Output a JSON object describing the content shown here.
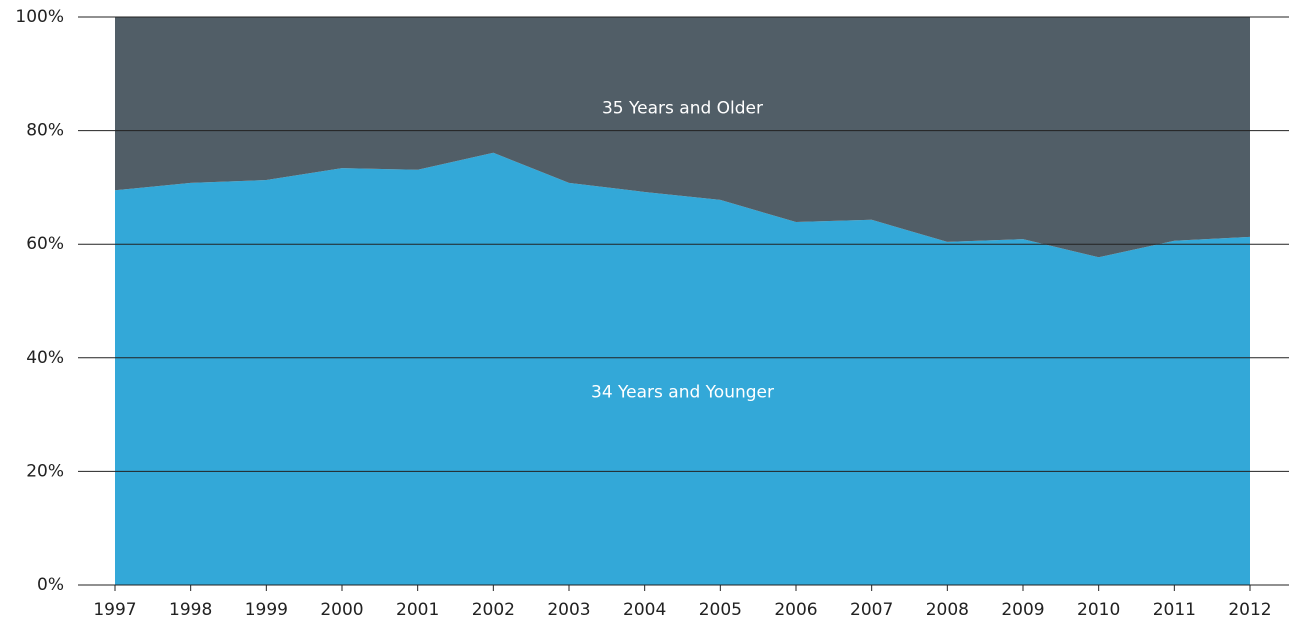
{
  "chart_data": {
    "type": "stacked_area",
    "categories": [
      "1997",
      "1998",
      "1999",
      "2000",
      "2001",
      "2002",
      "2003",
      "2004",
      "2005",
      "2006",
      "2007",
      "2008",
      "2009",
      "2010",
      "2011",
      "2012"
    ],
    "series": [
      {
        "name": "34 Years and Younger",
        "color": "#33a8d8",
        "values": [
          69.5,
          70.8,
          71.3,
          73.4,
          73.1,
          76.1,
          70.8,
          69.2,
          67.8,
          63.9,
          64.3,
          60.4,
          60.9,
          57.7,
          60.6,
          61.3
        ]
      },
      {
        "name": "35 Years and Older",
        "color": "#515e67",
        "values": [
          30.5,
          29.2,
          28.7,
          26.6,
          26.9,
          23.9,
          29.2,
          30.8,
          32.2,
          36.1,
          35.7,
          39.6,
          39.1,
          42.3,
          39.4,
          38.7
        ]
      }
    ],
    "ylim": [
      0,
      100
    ],
    "yticks": [
      {
        "value": 0,
        "label": "0%"
      },
      {
        "value": 20,
        "label": "20%"
      },
      {
        "value": 40,
        "label": "40%"
      },
      {
        "value": 60,
        "label": "60%"
      },
      {
        "value": 80,
        "label": "80%"
      },
      {
        "value": 100,
        "label": "100%"
      }
    ],
    "grid": true
  }
}
